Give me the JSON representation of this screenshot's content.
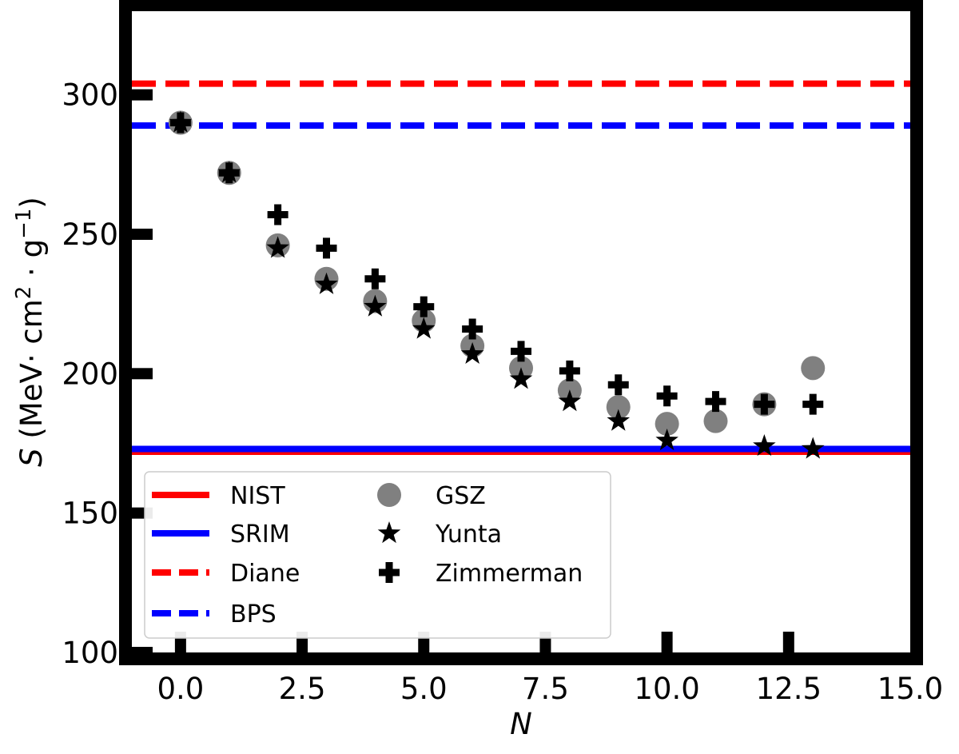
{
  "chart_data": {
    "type": "scatter",
    "xlabel": "N",
    "ylabel": "S (MeV· cm² · g⁻¹)",
    "ylabel_parts": {
      "prefix": "(MeV· cm",
      "sup1": "2",
      "middle": " · g",
      "sup2": "−1",
      "suffix": ")",
      "symbol": "S"
    },
    "xlim": [
      -1,
      15
    ],
    "ylim": [
      100,
      330
    ],
    "x_ticks": [
      0.0,
      2.5,
      5.0,
      7.5,
      10.0,
      12.5,
      15.0
    ],
    "x_tick_labels": [
      "0.0",
      "2.5",
      "5.0",
      "7.5",
      "10.0",
      "12.5",
      "15.0"
    ],
    "y_ticks": [
      100,
      150,
      200,
      250,
      300
    ],
    "y_tick_labels": [
      "100",
      "150",
      "200",
      "250",
      "300"
    ],
    "reference_lines": [
      {
        "name": "NIST",
        "value": 172,
        "color": "#ff0000",
        "style": "solid"
      },
      {
        "name": "SRIM",
        "value": 173,
        "color": "#0000ff",
        "style": "solid"
      },
      {
        "name": "Diane",
        "value": 304,
        "color": "#ff0000",
        "style": "dashed"
      },
      {
        "name": "BPS",
        "value": 289,
        "color": "#0000ff",
        "style": "dashed"
      }
    ],
    "series": [
      {
        "name": "GSZ",
        "marker": "circle",
        "color": "#808080",
        "x": [
          0,
          1,
          2,
          3,
          4,
          5,
          6,
          7,
          8,
          9,
          10,
          11,
          12,
          13
        ],
        "y": [
          290,
          272,
          246,
          234,
          226,
          219,
          210,
          202,
          194,
          188,
          182,
          183,
          189,
          202
        ]
      },
      {
        "name": "Yunta",
        "marker": "star",
        "color": "#000000",
        "x": [
          0,
          1,
          2,
          3,
          4,
          5,
          6,
          7,
          8,
          9,
          10,
          12,
          13
        ],
        "y": [
          290,
          272,
          245,
          232,
          224,
          216,
          207,
          198,
          190,
          183,
          176,
          174,
          173
        ]
      },
      {
        "name": "Zimmerman",
        "marker": "plus",
        "color": "#000000",
        "x": [
          0,
          1,
          2,
          3,
          4,
          5,
          6,
          7,
          8,
          9,
          10,
          11,
          12,
          13
        ],
        "y": [
          290,
          272,
          257,
          245,
          234,
          224,
          216,
          208,
          201,
          196,
          192,
          190,
          189,
          189
        ]
      }
    ],
    "legend": {
      "placement": "lower-left",
      "columns": [
        [
          "NIST",
          "SRIM",
          "Diane",
          "BPS"
        ],
        [
          "GSZ",
          "Yunta",
          "Zimmerman"
        ]
      ]
    }
  }
}
